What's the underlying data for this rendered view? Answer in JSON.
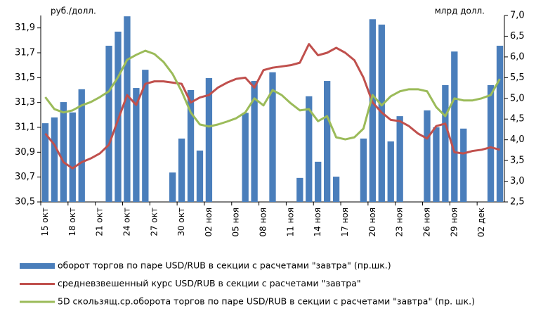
{
  "chart_data": {
    "type": "bar-line",
    "y_label": "руб./долл.",
    "y2_label": "млрд долл.",
    "categories": [
      "15 окт",
      null,
      null,
      "18 окт",
      null,
      null,
      "21 окт",
      null,
      null,
      "24 окт",
      null,
      null,
      "27 окт",
      null,
      null,
      "30 окт",
      null,
      null,
      "02 ноя",
      null,
      null,
      "05 ноя",
      null,
      null,
      "08 ноя",
      null,
      null,
      "11 ноя",
      null,
      null,
      "14 ноя",
      null,
      null,
      "17 ноя",
      null,
      null,
      "20 ноя",
      null,
      null,
      "23 ноя",
      null,
      null,
      "26 ноя",
      null,
      null,
      "29 ноя",
      null,
      null,
      "02 дек",
      null,
      null
    ],
    "ylim": [
      30.5,
      32.0
    ],
    "yticks": [
      {
        "value": 30.5,
        "label": "30,5"
      },
      {
        "value": 30.7,
        "label": "30,7"
      },
      {
        "value": 30.9,
        "label": "30,9"
      },
      {
        "value": 31.1,
        "label": "31,1"
      },
      {
        "value": 31.3,
        "label": "31,3"
      },
      {
        "value": 31.5,
        "label": "31,5"
      },
      {
        "value": 31.7,
        "label": "31,7"
      },
      {
        "value": 31.9,
        "label": "31,9"
      }
    ],
    "y2lim": [
      2.5,
      7.0
    ],
    "y2ticks": [
      {
        "value": 2.5,
        "label": "2,5"
      },
      {
        "value": 3.0,
        "label": "3,0"
      },
      {
        "value": 3.5,
        "label": "3,5"
      },
      {
        "value": 4.0,
        "label": "4,0"
      },
      {
        "value": 4.5,
        "label": "4,5"
      },
      {
        "value": 5.0,
        "label": "5,0"
      },
      {
        "value": 5.5,
        "label": "5,5"
      },
      {
        "value": 6.0,
        "label": "6,0"
      },
      {
        "value": 6.5,
        "label": "6,5"
      },
      {
        "value": 7.0,
        "label": "7,0"
      }
    ],
    "series": [
      {
        "name": "оборот торгов по паре USD/RUB в секции с расчетами \"завтра\" (пр.шк.)",
        "type": "bar",
        "axis": "y2",
        "color": "#4a7ebb",
        "values": [
          4.4,
          4.54,
          4.91,
          4.66,
          5.22,
          null,
          null,
          6.27,
          6.61,
          6.98,
          5.25,
          5.69,
          null,
          null,
          3.21,
          4.03,
          5.2,
          3.74,
          5.49,
          null,
          null,
          null,
          4.65,
          5.42,
          null,
          5.63,
          null,
          null,
          3.08,
          5.05,
          3.47,
          5.42,
          3.11,
          null,
          null,
          4.03,
          6.91,
          6.78,
          3.96,
          4.57,
          null,
          null,
          4.71,
          4.3,
          5.32,
          6.13,
          4.27,
          null,
          null,
          5.32,
          6.27
        ]
      },
      {
        "name": "средневзвешенный курс USD/RUB в секции с расчетами \"завтра\"",
        "type": "line",
        "axis": "y",
        "color": "#c0504d",
        "values": [
          31.05,
          30.96,
          30.82,
          30.77,
          30.82,
          30.85,
          30.89,
          30.96,
          31.16,
          31.36,
          31.28,
          31.45,
          31.47,
          31.47,
          31.46,
          31.45,
          31.3,
          31.34,
          31.36,
          31.42,
          31.46,
          31.49,
          31.5,
          31.42,
          31.56,
          31.58,
          31.59,
          31.6,
          31.62,
          31.77,
          31.68,
          31.7,
          31.74,
          31.7,
          31.64,
          31.5,
          31.3,
          31.22,
          31.16,
          31.15,
          31.11,
          31.05,
          31.01,
          31.11,
          31.13,
          30.9,
          30.89,
          30.91,
          30.92,
          30.94,
          30.92
        ]
      },
      {
        "name": "5D скользящ.ср.оборота торгов по паре USD/RUB в секции с расчетами \"завтра\" (пр. шк.)",
        "type": "line",
        "axis": "y2",
        "color": "#9bbb59",
        "values": [
          5.03,
          4.74,
          4.66,
          4.71,
          4.83,
          4.91,
          5.03,
          5.17,
          5.51,
          5.93,
          6.05,
          6.15,
          6.07,
          5.88,
          5.59,
          5.17,
          4.66,
          4.37,
          4.32,
          4.37,
          4.44,
          4.52,
          4.66,
          5.0,
          4.83,
          5.2,
          5.08,
          4.88,
          4.71,
          4.74,
          4.45,
          4.57,
          4.06,
          4.01,
          4.06,
          4.27,
          5.08,
          4.83,
          5.05,
          5.17,
          5.22,
          5.22,
          5.17,
          4.79,
          4.57,
          5.0,
          4.95,
          4.95,
          5.0,
          5.08,
          5.47
        ]
      }
    ]
  }
}
